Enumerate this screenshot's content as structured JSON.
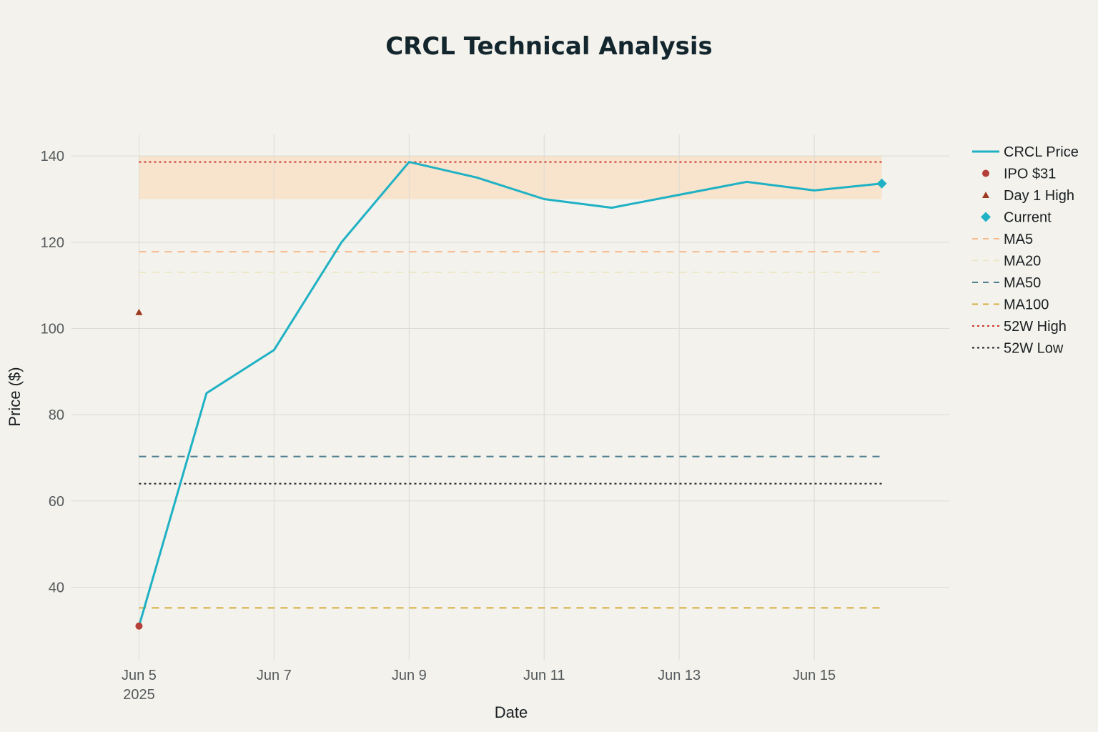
{
  "chart_data": {
    "type": "line",
    "title": "CRCL Technical Analysis",
    "xlabel": "Date",
    "ylabel": "Price ($)",
    "x_tick_labels": [
      {
        "date": "2025-06-05",
        "label": "Jun 5",
        "sublabel": "2025"
      },
      {
        "date": "2025-06-07",
        "label": "Jun 7",
        "sublabel": ""
      },
      {
        "date": "2025-06-09",
        "label": "Jun 9",
        "sublabel": ""
      },
      {
        "date": "2025-06-11",
        "label": "Jun 11",
        "sublabel": ""
      },
      {
        "date": "2025-06-13",
        "label": "Jun 13",
        "sublabel": ""
      },
      {
        "date": "2025-06-15",
        "label": "Jun 15",
        "sublabel": ""
      }
    ],
    "y_ticks": [
      40,
      60,
      80,
      100,
      120,
      140
    ],
    "xlim": [
      "2025-06-04",
      "2025-06-17"
    ],
    "ylim": [
      23,
      145
    ],
    "grid": true,
    "legend_position": "right",
    "series": [
      {
        "name": "CRCL Price",
        "style": "solid",
        "color": "#1fb1c4",
        "x": [
          "2025-06-05",
          "2025-06-06",
          "2025-06-07",
          "2025-06-08",
          "2025-06-09",
          "2025-06-10",
          "2025-06-11",
          "2025-06-12",
          "2025-06-13",
          "2025-06-14",
          "2025-06-15",
          "2025-06-16"
        ],
        "y": [
          31,
          85,
          95,
          120,
          138.6,
          135,
          130,
          128,
          131,
          134,
          132,
          133.6
        ]
      }
    ],
    "markers": [
      {
        "name": "IPO $31",
        "shape": "circle",
        "color": "#b5403a",
        "x": "2025-06-05",
        "y": 31
      },
      {
        "name": "Day 1 High",
        "shape": "triangle",
        "color": "#9c3b1f",
        "x": "2025-06-05",
        "y": 103.75
      },
      {
        "name": "Current",
        "shape": "diamond",
        "color": "#1fb1c4",
        "x": "2025-06-16",
        "y": 133.6
      }
    ],
    "reference_lines": [
      {
        "name": "MA5",
        "style": "dash",
        "color": "#f6b98a",
        "y": 117.8
      },
      {
        "name": "MA20",
        "style": "dash",
        "color": "#ece8c8",
        "y": 113
      },
      {
        "name": "MA50",
        "style": "dash",
        "color": "#4e7f91",
        "y": 70.3
      },
      {
        "name": "MA100",
        "style": "dash",
        "color": "#d6ad3b",
        "y": 35.2
      },
      {
        "name": "52W High",
        "style": "dot",
        "color": "#cc3a32",
        "y": 138.6
      },
      {
        "name": "52W Low",
        "style": "dot",
        "color": "#1f2326",
        "y": 64
      }
    ],
    "shaded_band": {
      "y0": 130,
      "y1": 140,
      "color": "#f8e3cc",
      "x0": "2025-06-05",
      "x1": "2025-06-16"
    },
    "legend_order": [
      "CRCL Price",
      "IPO $31",
      "Day 1 High",
      "Current",
      "MA5",
      "MA20",
      "MA50",
      "MA100",
      "52W High",
      "52W Low"
    ]
  }
}
